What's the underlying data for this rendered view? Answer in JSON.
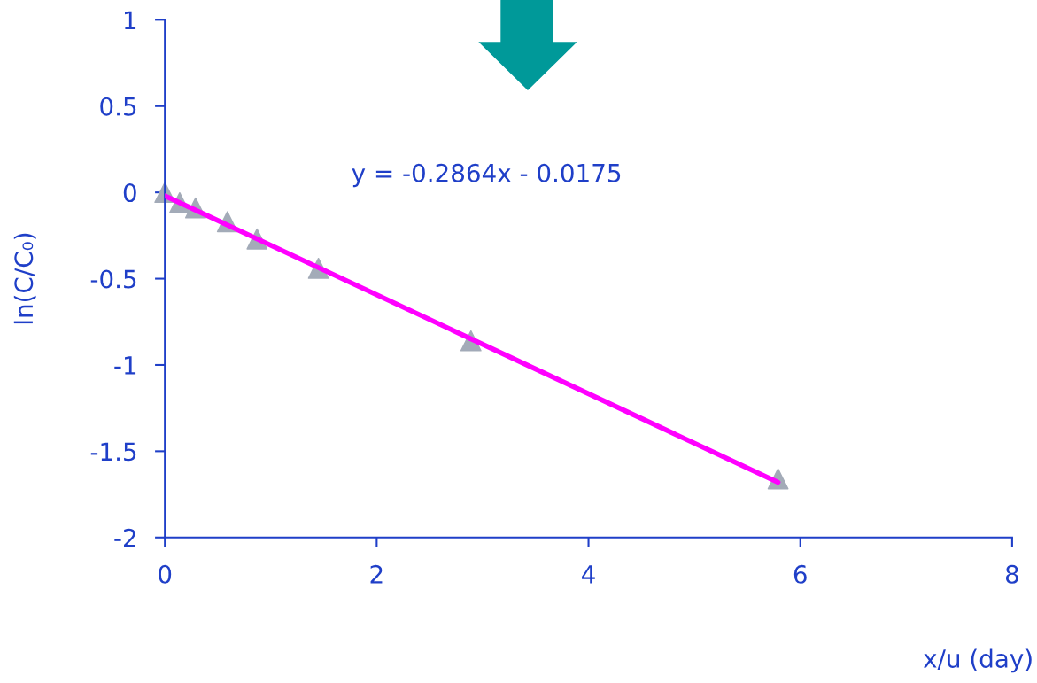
{
  "chart_data": {
    "type": "scatter",
    "xlabel": "x/u (day)",
    "ylabel": "ln(C/C₀)",
    "annotations": [
      "y = -0.2864x - 0.0175"
    ],
    "series": [
      {
        "color": "#a3abb8",
        "x": [
          0,
          0.14,
          0.29,
          0.59,
          0.87,
          1.45,
          2.89,
          5.79
        ],
        "values": [
          0,
          -0.06,
          -0.09,
          -0.17,
          -0.27,
          -0.44,
          -0.86,
          -1.66
        ],
        "marker": "triangle"
      },
      {
        "type": "line",
        "color": "#ff00ff",
        "x": [
          0,
          5.79
        ],
        "values": [
          -0.02,
          -1.68
        ],
        "marker": "none"
      }
    ],
    "xlim": [
      0,
      8
    ],
    "xticks": [
      0,
      2,
      4,
      6,
      8
    ],
    "ylim": [
      -2,
      1
    ],
    "yticks": [
      -2,
      -1.5,
      -1,
      -0.5,
      0,
      0.5,
      1
    ],
    "grid": false,
    "legend": false
  }
}
